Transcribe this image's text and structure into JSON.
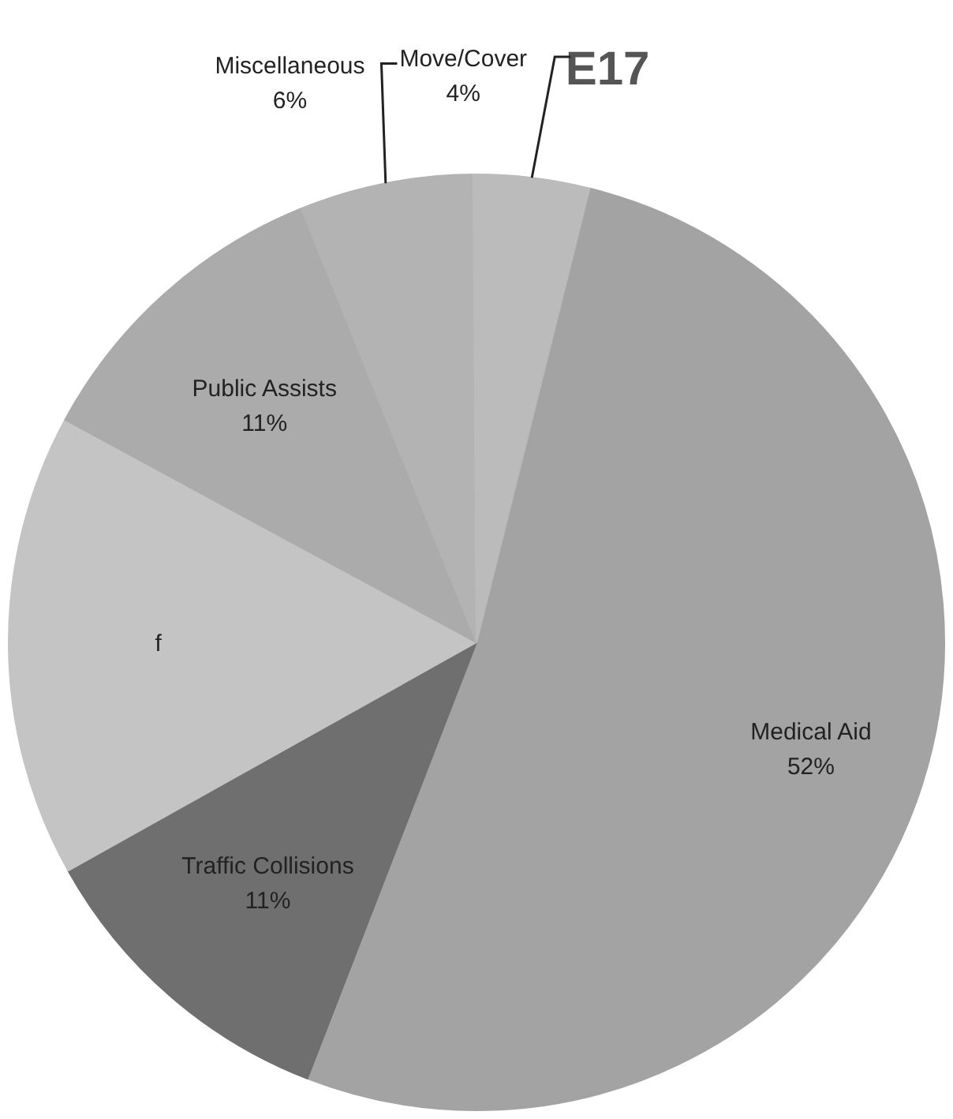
{
  "chart_data": {
    "type": "pie",
    "title": "E17",
    "categories": [
      "Medical Aid",
      "Traffic Collisions",
      "f",
      "Public Assists",
      "Miscellaneous",
      "Move/Cover"
    ],
    "values": [
      52,
      11,
      16,
      11,
      6,
      4
    ],
    "value_labels": [
      "52%",
      "11%",
      null,
      "11%",
      "6%",
      "4%"
    ],
    "colors": [
      "#a3a3a3",
      "#6f6f6f",
      "#c4c4c4",
      "#ababab",
      "#b3b3b3",
      "#bbbbbb"
    ],
    "legend": false
  }
}
